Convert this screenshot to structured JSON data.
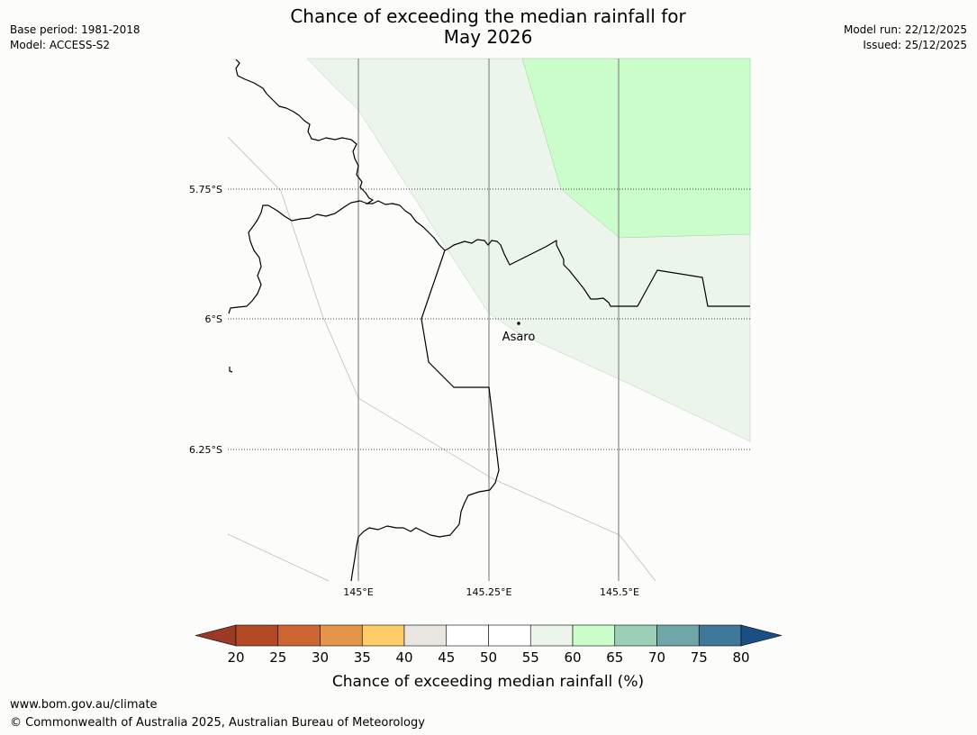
{
  "title_line1": "Chance of exceeding the median rainfall for",
  "title_line2": "May 2026",
  "base_period": "Base period: 1981-2018",
  "model": "Model: ACCESS-S2",
  "model_run": "Model run: 22/12/2025",
  "issued": "Issued: 25/12/2025",
  "map": {
    "lat_labels": [
      "5.75°S",
      "6°S",
      "6.25°S"
    ],
    "lon_labels": [
      "145°E",
      "145.25°E",
      "145.5°E"
    ],
    "place": "Asaro"
  },
  "legend": {
    "title": "Chance of exceeding median rainfall (%)",
    "ticks": [
      "20",
      "25",
      "30",
      "35",
      "40",
      "45",
      "50",
      "55",
      "60",
      "65",
      "70",
      "75",
      "80"
    ],
    "colors": [
      "#9a3a26",
      "#b24a26",
      "#cd6632",
      "#e3954a",
      "#fecd67",
      "#e9e6e2",
      "#ffffff",
      "#ffffff",
      "#ebf5eb",
      "#cbfdcb",
      "#9ccfb8",
      "#6fa6a7",
      "#3f7899",
      "#1b4e85"
    ]
  },
  "footer": {
    "url": "www.bom.gov.au/climate",
    "copyright": "© Commonwealth of Australia 2025, Australian Bureau of Meteorology"
  }
}
